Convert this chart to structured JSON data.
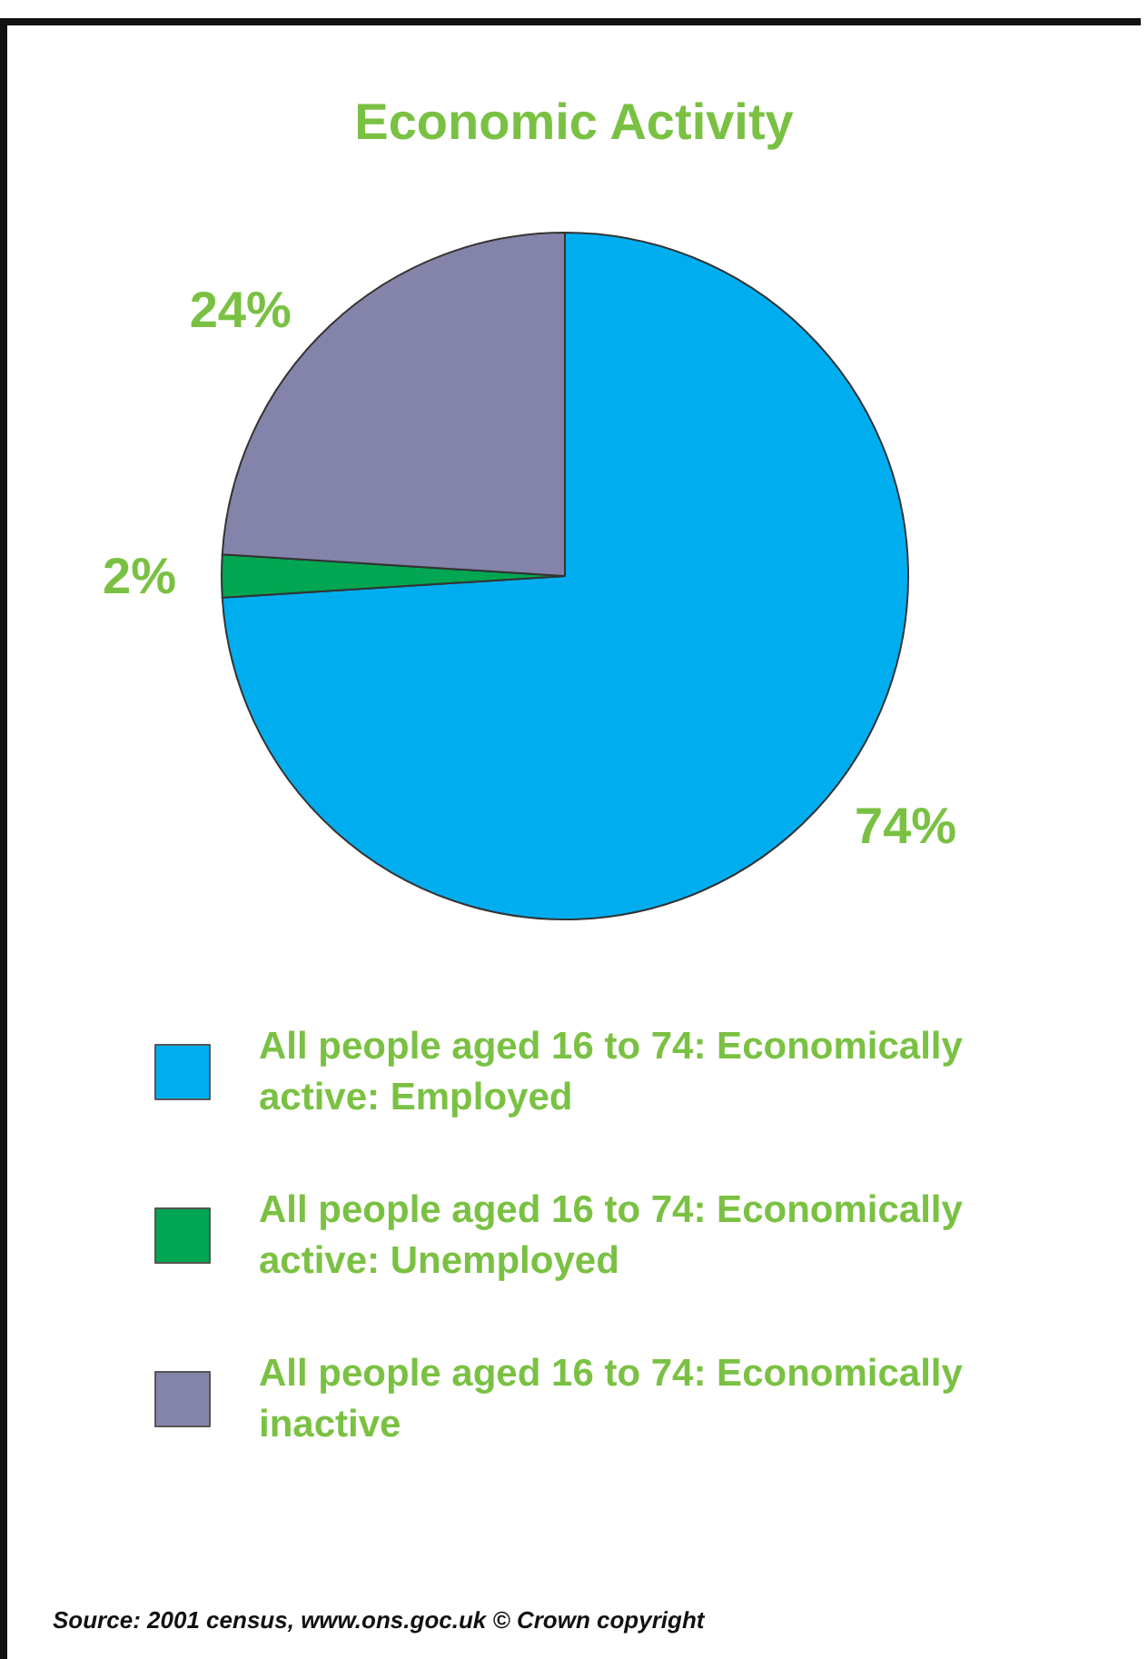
{
  "chart_data": {
    "type": "pie",
    "title": "Economic Activity",
    "categories": [
      "All people aged 16 to 74: Economically active: Employed",
      "All people aged 16 to 74: Economically active: Unemployed",
      "All people aged 16 to 74: Economically inactive"
    ],
    "values": [
      74,
      2,
      24
    ],
    "colors": [
      "#00aeef",
      "#00a651",
      "#8484aa"
    ],
    "value_labels": [
      "74%",
      "2%",
      "24%"
    ],
    "legend": "bottom",
    "annotations": [
      "Source: 2001 census, www.ons.goc.uk © Crown copyright"
    ]
  }
}
